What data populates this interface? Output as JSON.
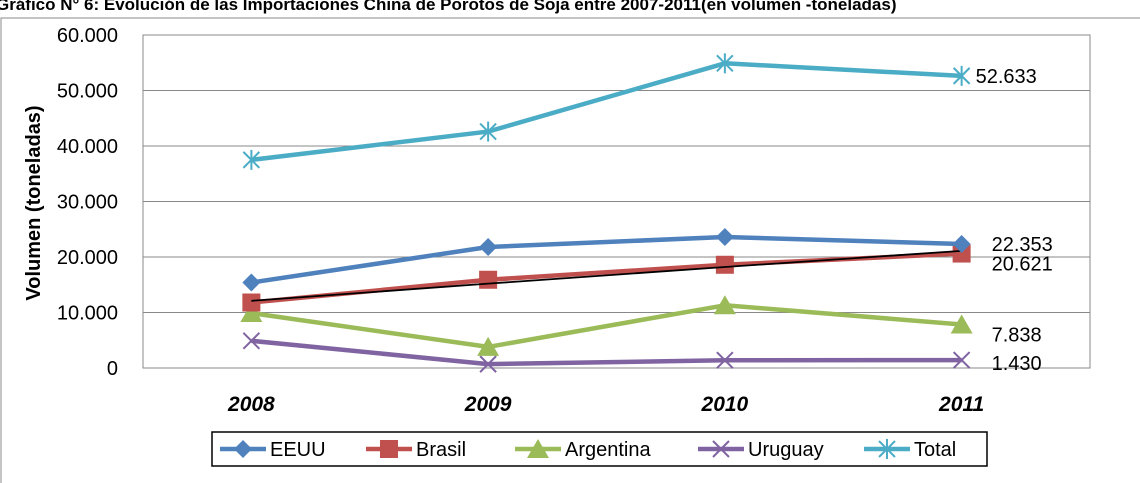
{
  "chart_data": {
    "type": "line",
    "title": "Gráfico N° 6: Evolución de las Importaciones China de Porotos de Soja  entre 2007-2011(en volumen -toneladas)",
    "ylabel": "Volumen (toneladas)",
    "xlabel": "",
    "ylim": [
      0,
      60000
    ],
    "ytick_values": [
      0,
      10000,
      20000,
      30000,
      40000,
      50000,
      60000
    ],
    "ytick_labels": [
      "0",
      "10.000",
      "20.000",
      "30.000",
      "40.000",
      "50.000",
      "60.000"
    ],
    "categories": [
      "2008",
      "2009",
      "2010",
      "2011"
    ],
    "grid": true,
    "legend_position": "bottom",
    "series": [
      {
        "name": "EEUU",
        "color": "#4f81bd",
        "marker": "diamond",
        "values": [
          15400,
          21800,
          23600,
          22353
        ]
      },
      {
        "name": "Brasil",
        "color": "#c0504d",
        "marker": "square",
        "values": [
          11800,
          15900,
          18600,
          20621
        ]
      },
      {
        "name": "Argentina",
        "color": "#9bbb59",
        "marker": "triangle",
        "values": [
          9900,
          3800,
          11300,
          7838
        ]
      },
      {
        "name": "Uruguay",
        "color": "#8064a2",
        "marker": "x",
        "values": [
          4900,
          700,
          1400,
          1430
        ]
      },
      {
        "name": "Total",
        "color": "#4bacc6",
        "marker": "asterisk",
        "values": [
          37500,
          42600,
          54900,
          52633
        ]
      }
    ],
    "trendline": {
      "series": "Brasil",
      "color": "#000000",
      "values": [
        12100,
        15200,
        18200,
        21100
      ]
    },
    "data_labels": [
      {
        "series": "Total",
        "text": "52.633"
      },
      {
        "series": "EEUU",
        "text": "22.353"
      },
      {
        "series": "Brasil",
        "text": "20.621"
      },
      {
        "series": "Argentina",
        "text": "7.838"
      },
      {
        "series": "Uruguay",
        "text": "1.430"
      }
    ]
  }
}
